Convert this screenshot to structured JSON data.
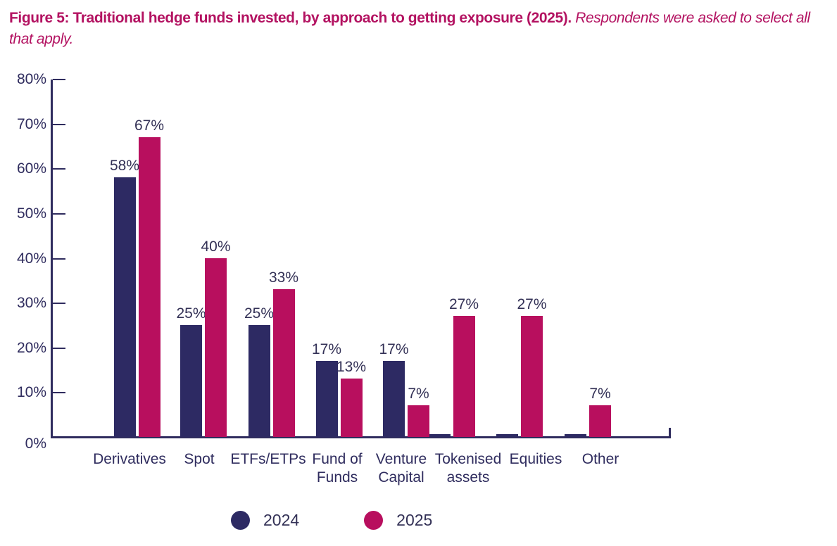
{
  "figure": {
    "caption_bold": "Figure 5: Traditional hedge funds invested, by approach to getting exposure (2025).",
    "caption_italic": "Respondents were asked to select all that apply."
  },
  "colors": {
    "caption": "#b31261",
    "series_2024": "#2d2a63",
    "series_2025": "#b80f5e",
    "axis": "#2f2c5e",
    "value_label": "#333156"
  },
  "chart_data": {
    "type": "bar",
    "title": "Figure 5: Traditional hedge funds invested, by approach to getting exposure (2025). Respondents were asked to select all that apply.",
    "categories": [
      "Derivatives",
      "Spot",
      "ETFs/ETPs",
      "Fund of Funds",
      "Venture Capital",
      "Tokenised assets",
      "Equities",
      "Other"
    ],
    "category_label_lines": [
      [
        "Derivatives"
      ],
      [
        "Spot"
      ],
      [
        "ETFs/ETPs"
      ],
      [
        "Fund of",
        "Funds"
      ],
      [
        "Venture",
        "Capital"
      ],
      [
        "Tokenised",
        "assets"
      ],
      [
        "Equities"
      ],
      [
        "Other"
      ]
    ],
    "series": [
      {
        "name": "2024",
        "color": "#2d2a63",
        "values": [
          58,
          25,
          25,
          17,
          17,
          0,
          0,
          0
        ]
      },
      {
        "name": "2025",
        "color": "#b80f5e",
        "values": [
          67,
          40,
          33,
          13,
          7,
          27,
          27,
          7
        ]
      }
    ],
    "value_suffix": "%",
    "y_axis": {
      "min": 0,
      "max": 80,
      "ticks": [
        0,
        10,
        20,
        30,
        40,
        50,
        60,
        70,
        80
      ],
      "tick_suffix": "%"
    },
    "legend": {
      "position": "bottom",
      "entries": [
        "2024",
        "2025"
      ]
    },
    "grid": false
  }
}
